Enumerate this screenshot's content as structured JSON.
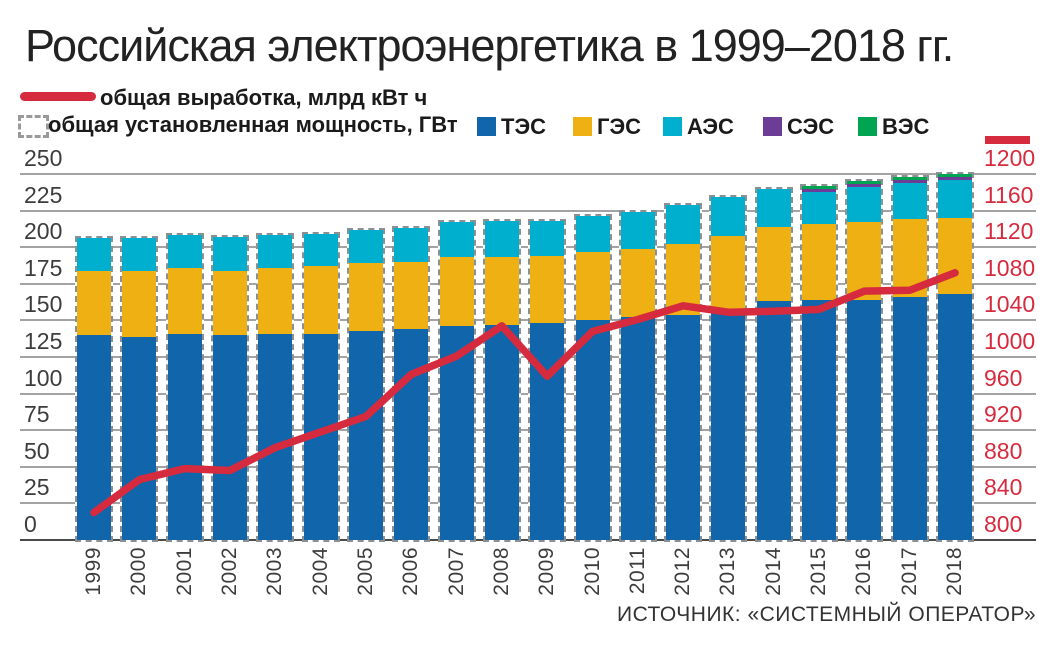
{
  "title": "Российская электроэнергетика в 1999–2018 гг.",
  "source": "ИСТОЧНИК: «СИСТЕМНЫЙ ОПЕРАТОР»",
  "legend": {
    "line_label": "общая выработка, млрд кВт ч",
    "capacity_label": "общая установленная мощность, ГВт",
    "series": [
      {
        "label": "ТЭС",
        "color": "#1065ab"
      },
      {
        "label": "ГЭС",
        "color": "#eeb012"
      },
      {
        "label": "АЭС",
        "color": "#00aecd"
      },
      {
        "label": "СЭС",
        "color": "#6c3d97"
      },
      {
        "label": "ВЭС",
        "color": "#00a551"
      }
    ]
  },
  "colors": {
    "line": "#d62b3e",
    "grid": "#a3a3a3",
    "axis": "#4a4a4a",
    "bar_outline": "#8b9094",
    "left_tick_text": "#3d3d3d",
    "right_tick_text": "#d62b3e"
  },
  "chart_data": {
    "type": "bar",
    "stacked": true,
    "title": "Российская электроэнергетика в 1999–2018 гг.",
    "categories": [
      "1999",
      "2000",
      "2001",
      "2002",
      "2003",
      "2004",
      "2005",
      "2006",
      "2007",
      "2008",
      "2009",
      "2010",
      "2011",
      "2012",
      "2013",
      "2014",
      "2015",
      "2016",
      "2017",
      "2018"
    ],
    "series": [
      {
        "name": "ТЭС",
        "unit": "ГВт",
        "color": "#1065ab",
        "values": [
          140,
          139,
          141,
          140,
          141,
          141,
          143,
          144,
          146,
          147,
          148,
          150,
          152,
          154,
          158,
          163,
          164,
          164,
          166,
          168
        ]
      },
      {
        "name": "ГЭС",
        "unit": "ГВт",
        "color": "#eeb012",
        "values": [
          44,
          45,
          45,
          44,
          45,
          46,
          46,
          46,
          47,
          46,
          46,
          47,
          47,
          48,
          50,
          51,
          52,
          53,
          53,
          52
        ]
      },
      {
        "name": "АЭС",
        "unit": "ГВт",
        "color": "#00aecd",
        "values": [
          22,
          22,
          22,
          23,
          22,
          22,
          23,
          23,
          24,
          25,
          24,
          24,
          25,
          27,
          26,
          26,
          26,
          28,
          28,
          29
        ]
      },
      {
        "name": "СЭС",
        "unit": "ГВт",
        "color": "#6c3d97",
        "values": [
          0,
          0,
          0,
          0,
          0,
          0,
          0,
          0,
          0,
          0,
          0,
          0,
          0,
          0,
          0,
          0,
          0.06,
          0.08,
          0.5,
          0.8
        ]
      },
      {
        "name": "ВЭС",
        "unit": "ГВт",
        "color": "#00a551",
        "values": [
          0,
          0,
          0,
          0,
          0,
          0,
          0,
          0,
          0,
          0,
          0,
          0,
          0,
          0,
          0,
          0,
          0.01,
          0.01,
          0.13,
          0.2
        ]
      }
    ],
    "line": {
      "name": "общая выработка, млрд кВт ч",
      "color": "#d62b3e",
      "axis": "right",
      "values": [
        830,
        866,
        878,
        876,
        901,
        918,
        935,
        981,
        1001,
        1034,
        979,
        1028,
        1041,
        1056,
        1049,
        1050,
        1052,
        1072,
        1073,
        1092
      ]
    },
    "left_axis": {
      "label": "общая установленная мощность, ГВт",
      "min": 0,
      "max": 250,
      "step": 25,
      "ticks": [
        0,
        25,
        50,
        75,
        100,
        125,
        150,
        175,
        200,
        225,
        250
      ]
    },
    "right_axis": {
      "label": "общая выработка, млрд кВт ч",
      "min": 800,
      "max": 1200,
      "step": 40,
      "ticks": [
        800,
        840,
        880,
        920,
        960,
        1000,
        1040,
        1080,
        1120,
        1160,
        1200
      ]
    },
    "grid": true,
    "legend_position": "top",
    "bar_outline_style": "dashed"
  }
}
